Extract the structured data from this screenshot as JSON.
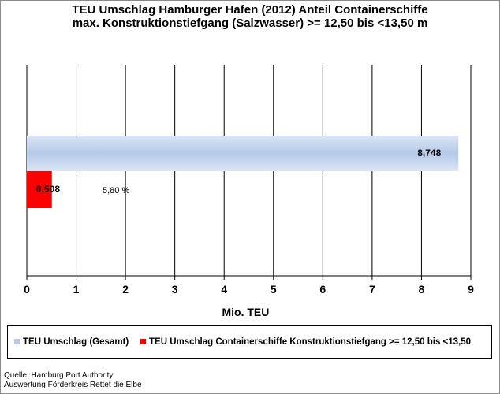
{
  "chart_data": {
    "type": "bar",
    "orientation": "horizontal",
    "title": "TEU Umschlag Hamburger Hafen (2012) Anteil Containerschiffe",
    "subtitle": "max. Konstruktionstiefgang (Salzwasser) >= 12,50 bis <13,50 m",
    "xlabel": "Mio. TEU",
    "xlim": [
      0,
      9
    ],
    "xticks": [
      "0",
      "1",
      "2",
      "3",
      "4",
      "5",
      "6",
      "7",
      "8",
      "9"
    ],
    "grid": "vertical",
    "legend_position": "bottom",
    "series": [
      {
        "name": "TEU Umschlag (Gesamt)",
        "value": 8.748,
        "label": "8,748",
        "color": "#b7cbe8"
      },
      {
        "name": "TEU Umschlag Containerschiffe Konstruktionstiefgang >= 12,50 bis <13,50",
        "value": 0.508,
        "label": "0,508",
        "color": "#ff0000"
      }
    ],
    "annotation": "5,80 %"
  },
  "source": {
    "line1": "Quelle: Hamburg Port Authority",
    "line2": "Auswertung Förderkreis Rettet die Elbe"
  }
}
